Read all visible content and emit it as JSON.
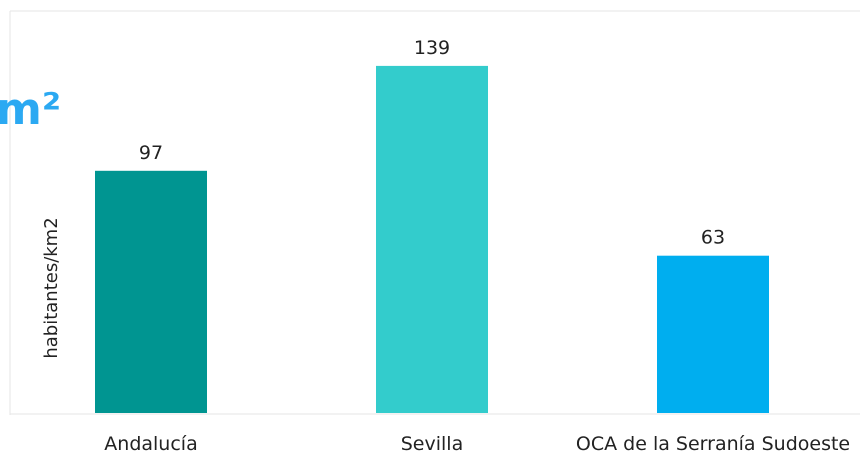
{
  "chart_data": {
    "type": "bar",
    "title": "m²",
    "ylabel": "habitantes/km2",
    "xlabel": "",
    "categories": [
      "Andalucía",
      "Sevilla",
      "OCA de la Serranía Sudoeste"
    ],
    "values": [
      97,
      139,
      63
    ],
    "value_labels": [
      "97",
      "139",
      "63"
    ],
    "colors": [
      "#009591",
      "#33cccc",
      "#00aeef"
    ],
    "title_color": "#2ba9f2",
    "ylim": [
      0,
      145
    ],
    "grid": false,
    "legend": "none"
  }
}
